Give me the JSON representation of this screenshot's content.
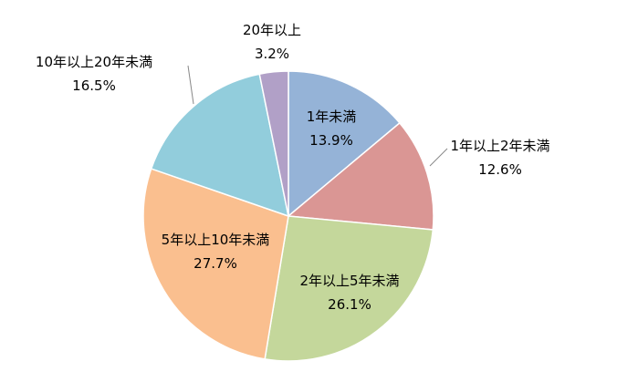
{
  "chart_data": {
    "type": "pie",
    "title": "",
    "start": "top",
    "direction": "clockwise",
    "slices": [
      {
        "label": "1年未満",
        "value": 13.9,
        "value_label": "13.9%",
        "color": "#95B3D7"
      },
      {
        "label": "1年以上2年未満",
        "value": 12.6,
        "value_label": "12.6%",
        "color": "#DA9694"
      },
      {
        "label": "2年以上5年未満",
        "value": 26.1,
        "value_label": "26.1%",
        "color": "#C4D79B"
      },
      {
        "label": "5年以上10年未満",
        "value": 27.7,
        "value_label": "27.7%",
        "color": "#FABF8F"
      },
      {
        "label": "10年以上20年未満",
        "value": 16.5,
        "value_label": "16.5%",
        "color": "#92CDDC"
      },
      {
        "label": "20年以上",
        "value": 3.2,
        "value_label": "3.2%",
        "color": "#B1A0C7"
      }
    ]
  }
}
